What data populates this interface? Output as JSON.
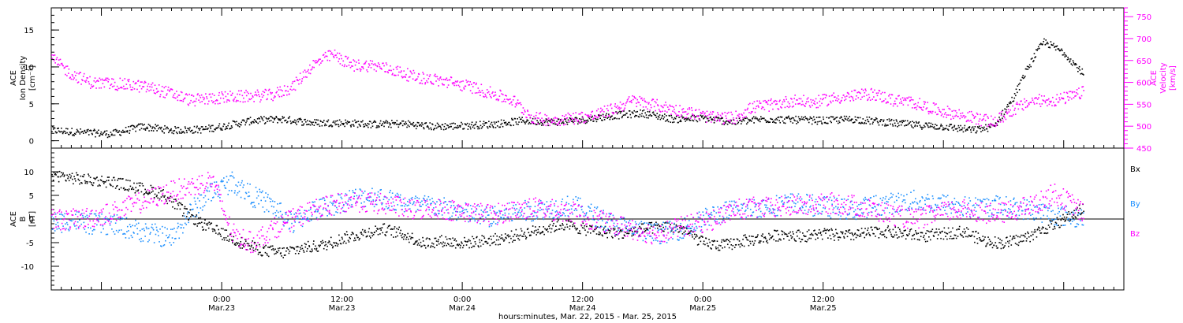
{
  "chart_data": [
    {
      "type": "scatter",
      "title": "",
      "xlabel": "",
      "y_left_label": [
        "ACE",
        "Ion Density",
        "[cm⁻³]"
      ],
      "y_right_label": [
        "ACE",
        "Velocity",
        "[km/s]"
      ],
      "x_range_hours": [
        -17,
        90
      ],
      "ylim_left": [
        -1,
        18
      ],
      "ylim_right": [
        450,
        770
      ],
      "y_left_ticks": [
        "0",
        "5",
        "10",
        "15"
      ],
      "y_right_ticks": [
        "450",
        "500",
        "550",
        "600",
        "650",
        "700",
        "750"
      ],
      "colors": {
        "density": "#000000",
        "velocity": "#ff00ff"
      },
      "series": [
        {
          "name": "",
          "axis": "left",
          "color_key": "density",
          "x": [
            -17,
            -14,
            -11,
            -8,
            -5,
            -2,
            0,
            3,
            6,
            9,
            12,
            15,
            18,
            21,
            24,
            27,
            30,
            33,
            36,
            39,
            42,
            45,
            48,
            51,
            54,
            57,
            60,
            63,
            66,
            69,
            72,
            75,
            77,
            79,
            80,
            81,
            82,
            84,
            86
          ],
          "y": [
            1.5,
            1.2,
            1.0,
            2.0,
            1.5,
            1.6,
            2.0,
            2.8,
            3.0,
            2.5,
            2.5,
            2.3,
            2.4,
            2.0,
            2.1,
            2.3,
            2.8,
            2.6,
            2.9,
            3.5,
            3.8,
            3.0,
            3.1,
            2.6,
            3.0,
            2.9,
            2.8,
            3.0,
            2.6,
            2.2,
            2.0,
            1.5,
            2.0,
            6.0,
            9.0,
            11.5,
            13.5,
            12.0,
            9.0
          ]
        },
        {
          "name": "",
          "axis": "right",
          "color_key": "velocity",
          "x": [
            -17,
            -15,
            -13,
            -11,
            -9,
            -7,
            -5,
            -3,
            -1,
            1,
            3,
            5,
            7,
            9,
            11,
            13,
            15,
            17,
            19,
            21,
            23,
            25,
            27,
            29,
            31,
            33,
            35,
            37,
            39,
            41,
            43,
            45,
            47,
            49,
            51,
            53,
            55,
            57,
            59,
            61,
            63,
            65,
            67,
            69,
            71,
            73,
            75,
            77,
            79,
            81,
            83,
            85,
            86
          ],
          "y": [
            655,
            620,
            600,
            598,
            595,
            588,
            575,
            560,
            565,
            568,
            570,
            572,
            590,
            640,
            665,
            640,
            640,
            630,
            615,
            608,
            600,
            590,
            575,
            560,
            520,
            515,
            520,
            525,
            540,
            560,
            550,
            540,
            530,
            520,
            520,
            545,
            550,
            560,
            555,
            565,
            570,
            575,
            560,
            555,
            540,
            530,
            520,
            510,
            540,
            560,
            560,
            570,
            580
          ]
        }
      ]
    },
    {
      "type": "scatter",
      "title": "",
      "ylabel": [
        "ACE",
        "B",
        "[nT]"
      ],
      "x_range_hours": [
        -17,
        90
      ],
      "ylim": [
        -15,
        15
      ],
      "y_ticks": [
        "-10",
        "-5",
        "0",
        "5",
        "10"
      ],
      "zero_line": true,
      "legend_placement": "right",
      "colors": {
        "bx": "#000000",
        "by": "#1e90ff",
        "bz": "#ff00ff"
      },
      "series": [
        {
          "name": "Bx",
          "color_key": "bx",
          "x": [
            -17,
            -14,
            -11,
            -8,
            -6,
            -4,
            -2,
            0,
            2,
            4,
            6,
            8,
            10,
            12,
            14,
            16,
            18,
            20,
            22,
            24,
            26,
            28,
            30,
            32,
            34,
            36,
            38,
            40,
            42,
            44,
            46,
            48,
            50,
            52,
            54,
            56,
            58,
            60,
            62,
            64,
            66,
            68,
            70,
            72,
            74,
            76,
            78,
            80,
            82,
            84,
            86
          ],
          "y": [
            9.5,
            8.5,
            8,
            6.5,
            5.5,
            2,
            -1,
            -3,
            -5,
            -6.5,
            -7,
            -6,
            -5.5,
            -4,
            -3,
            -2,
            -3,
            -5,
            -4.5,
            -5,
            -4.5,
            -4,
            -3,
            -2,
            -1,
            -2,
            -2.5,
            -3,
            -2,
            -1.5,
            -2,
            -5,
            -5.5,
            -4.5,
            -4,
            -3,
            -3.5,
            -3,
            -3.5,
            -3,
            -2.5,
            -3,
            -3.5,
            -3,
            -2.5,
            -4.5,
            -5,
            -4,
            -2,
            0,
            2.5
          ]
        },
        {
          "name": "By",
          "color_key": "by",
          "x": [
            -17,
            -15,
            -13,
            -11,
            -9,
            -7,
            -5,
            -3,
            -1,
            1,
            3,
            5,
            7,
            9,
            11,
            13,
            15,
            17,
            19,
            21,
            23,
            25,
            27,
            29,
            31,
            33,
            35,
            37,
            39,
            41,
            43,
            45,
            47,
            49,
            51,
            53,
            55,
            57,
            59,
            61,
            63,
            65,
            67,
            69,
            71,
            73,
            75,
            77,
            79,
            81,
            83,
            85,
            86
          ],
          "y": [
            -1,
            0,
            -1,
            -1,
            -2,
            -3,
            -4,
            2,
            6,
            8,
            5,
            3,
            -1,
            2,
            3,
            4.5,
            5,
            4,
            3,
            3,
            2,
            1,
            0.5,
            1.5,
            2,
            2.5,
            3,
            1,
            -1,
            -2,
            -3,
            -2.5,
            -1,
            1,
            2,
            2.5,
            3,
            3.5,
            3,
            2.5,
            2,
            3,
            3.5,
            4,
            3.5,
            3,
            2.5,
            3,
            2.5,
            2,
            1,
            0.5,
            0.5
          ]
        },
        {
          "name": "Bz",
          "color_key": "bz",
          "x": [
            -17,
            -15,
            -13,
            -11,
            -9,
            -7,
            -5,
            -3,
            -1,
            1,
            3,
            5,
            7,
            9,
            11,
            13,
            15,
            17,
            19,
            21,
            23,
            25,
            27,
            29,
            31,
            33,
            35,
            37,
            39,
            41,
            43,
            45,
            47,
            49,
            51,
            53,
            55,
            57,
            59,
            61,
            63,
            65,
            67,
            69,
            71,
            73,
            75,
            77,
            79,
            81,
            83,
            85,
            86
          ],
          "y": [
            0,
            0,
            0.5,
            1.5,
            3,
            4.5,
            6,
            7,
            8.5,
            -3,
            -5,
            -2,
            0,
            2,
            3,
            4,
            3.5,
            3,
            2,
            2.5,
            2,
            1.5,
            1,
            2,
            2.5,
            2,
            1.5,
            0,
            -1,
            -2,
            -3,
            -2,
            -1,
            0,
            2,
            2.5,
            2.5,
            3,
            3,
            3.5,
            3,
            2,
            1,
            0,
            1,
            2,
            2,
            1,
            2,
            3,
            5.5,
            3,
            1
          ]
        }
      ]
    }
  ],
  "x_ticks": [
    {
      "hour": 0,
      "line1": "0:00",
      "line2": "Mar.23"
    },
    {
      "hour": 12,
      "line1": "12:00",
      "line2": "Mar.23"
    },
    {
      "hour": 24,
      "line1": "0:00",
      "line2": "Mar.24"
    },
    {
      "hour": 36,
      "line1": "12:00",
      "line2": "Mar.24"
    },
    {
      "hour": 48,
      "line1": "0:00",
      "line2": "Mar.25"
    },
    {
      "hour": 60,
      "line1": "12:00",
      "line2": "Mar.25"
    }
  ],
  "x_axis_caption": "hours:minutes, Mar. 22, 2015 - Mar. 25, 2015",
  "legend": {
    "bx": "Bx",
    "by": "By",
    "bz": "Bz"
  }
}
